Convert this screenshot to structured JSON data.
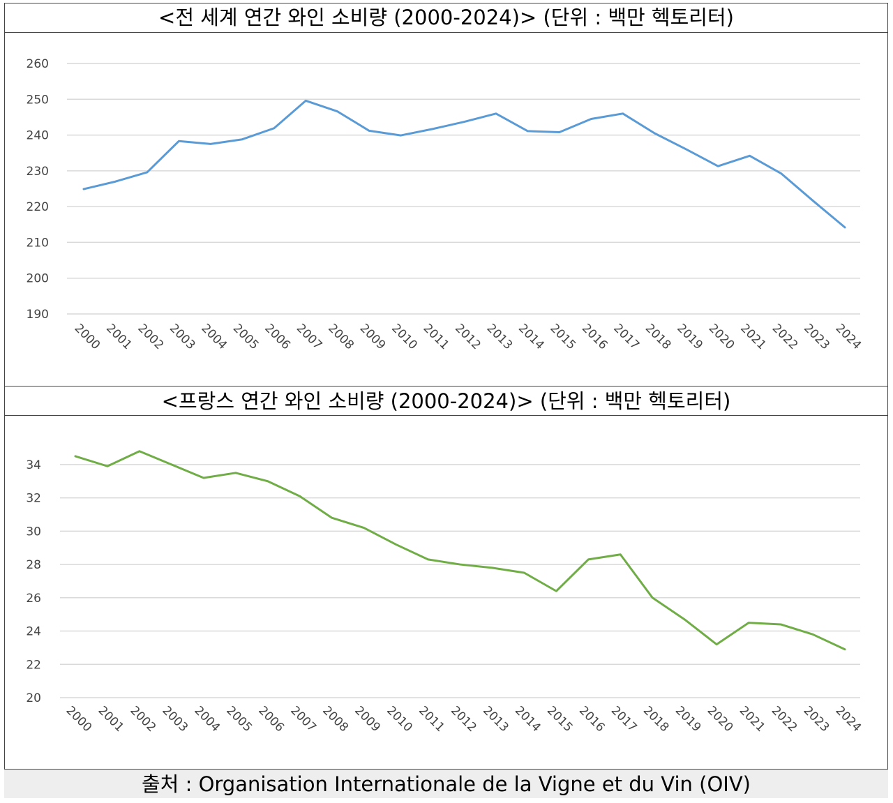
{
  "source": "출처 : Organisation Internationale de la Vigne et du Vin (OIV)",
  "colors": {
    "world": "#5b9bd5",
    "france": "#70ad47"
  },
  "chart_data": [
    {
      "type": "line",
      "title": "<전 세계 연간 와인 소비량 (2000-2024)> (단위 : 백만 헥토리터)",
      "xlabel": "",
      "ylabel": "",
      "categories": [
        "2000",
        "2001",
        "2002",
        "2003",
        "2004",
        "2005",
        "2006",
        "2007",
        "2008",
        "2009",
        "2010",
        "2011",
        "2012",
        "2013",
        "2014",
        "2015",
        "2016",
        "2017",
        "2018",
        "2019",
        "2020",
        "2021",
        "2022",
        "2023",
        "2024"
      ],
      "yticks": [
        190,
        200,
        210,
        220,
        230,
        240,
        250,
        260
      ],
      "ylim": [
        190,
        260
      ],
      "grid": true,
      "series": [
        {
          "values": [
            224.9,
            227.0,
            229.6,
            238.3,
            237.5,
            238.8,
            241.9,
            249.6,
            246.6,
            241.2,
            239.9,
            241.7,
            243.7,
            246.0,
            241.1,
            240.8,
            244.5,
            246.0,
            240.5,
            236.0,
            231.3,
            234.2,
            229.2,
            221.6,
            214.2
          ]
        }
      ]
    },
    {
      "type": "line",
      "title": "<프랑스 연간 와인 소비량 (2000-2024)> (단위 : 백만 헥토리터)",
      "xlabel": "",
      "ylabel": "",
      "categories": [
        "2000",
        "2001",
        "2002",
        "2003",
        "2004",
        "2005",
        "2006",
        "2007",
        "2008",
        "2009",
        "2010",
        "2011",
        "2012",
        "2013",
        "2014",
        "2015",
        "2016",
        "2017",
        "2018",
        "2019",
        "2020",
        "2021",
        "2022",
        "2023",
        "2024"
      ],
      "yticks": [
        20,
        22,
        24,
        26,
        28,
        30,
        32,
        34
      ],
      "ylim": [
        20,
        35
      ],
      "grid": true,
      "series": [
        {
          "values": [
            34.5,
            33.9,
            34.8,
            34.0,
            33.2,
            33.5,
            33.0,
            32.1,
            30.8,
            30.2,
            29.2,
            28.3,
            28.0,
            27.8,
            27.5,
            26.4,
            28.3,
            28.6,
            26.0,
            24.7,
            23.2,
            24.5,
            24.4,
            23.8,
            22.9
          ]
        }
      ]
    }
  ]
}
